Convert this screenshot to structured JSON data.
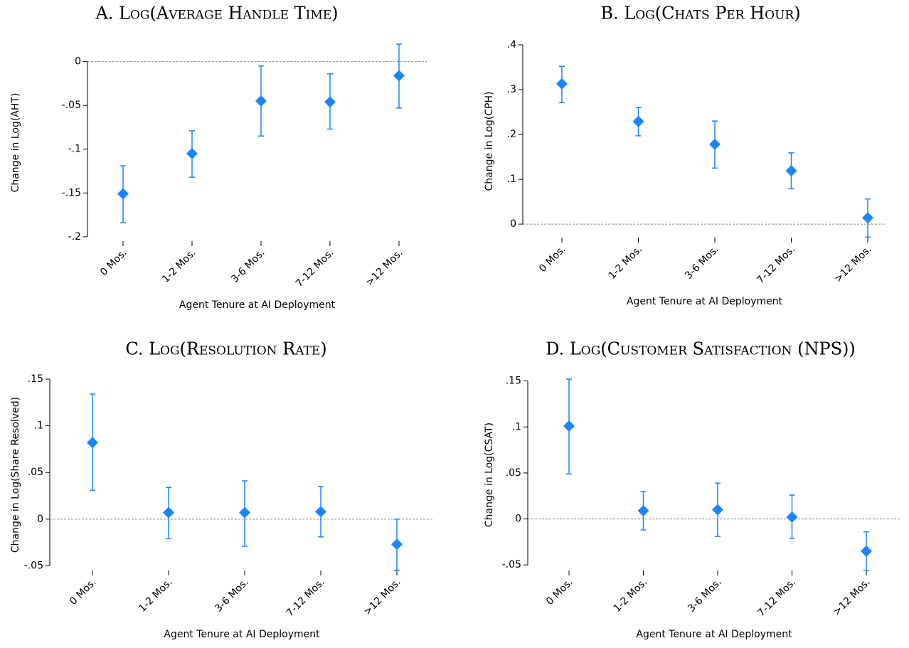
{
  "chart_data": [
    {
      "type": "errorbar",
      "title": "A. Log(Average Handle Time)",
      "x_label": "Agent Tenure at AI Deployment",
      "y_label": "Change in Log(AHT)",
      "categories": [
        "0 Mos.",
        "1-2 Mos.",
        "3-6 Mos.",
        "7-12 Mos.",
        ">12 Mos."
      ],
      "values": [
        -0.151,
        -0.105,
        -0.045,
        -0.046,
        -0.016
      ],
      "ci_low": [
        -0.184,
        -0.132,
        -0.085,
        -0.077,
        -0.053
      ],
      "ci_high": [
        -0.119,
        -0.079,
        -0.005,
        -0.014,
        0.02
      ],
      "color": "#1a85ff",
      "reference_line": 0,
      "ylim": [
        -0.205,
        0.02
      ],
      "yticks": [
        {
          "value": -0.2,
          "label": "-.2"
        },
        {
          "value": -0.15,
          "label": "-.15"
        },
        {
          "value": -0.1,
          "label": "-.1"
        },
        {
          "value": -0.05,
          "label": "-.05"
        },
        0
      ]
    },
    {
      "type": "errorbar",
      "title": "B. Log(Chats Per Hour)",
      "x_label": "Agent Tenure at AI Deployment",
      "y_label": "Change in Log(CPH)",
      "categories": [
        "0 Mos.",
        "1-2 Mos.",
        "3-6 Mos.",
        "7-12 Mos.",
        ">12 Mos."
      ],
      "values": [
        0.313,
        0.229,
        0.178,
        0.119,
        0.014
      ],
      "ci_low": [
        0.271,
        0.197,
        0.125,
        0.079,
        -0.029
      ],
      "ci_high": [
        0.352,
        0.26,
        0.23,
        0.159,
        0.056
      ],
      "color": "#1a85ff",
      "reference_line": 0,
      "ylim": [
        -0.03,
        0.4
      ],
      "yticks": [
        0,
        {
          "value": 0.1,
          "label": ".1"
        },
        {
          "value": 0.2,
          "label": ".2"
        },
        {
          "value": 0.3,
          "label": ".3"
        },
        {
          "value": 0.4,
          "label": ".4"
        }
      ]
    },
    {
      "type": "errorbar",
      "title": "C. Log(Resolution Rate)",
      "x_label": "Agent Tenure at AI Deployment",
      "y_label": "Change in Log(Share Resolved)",
      "categories": [
        "0 Mos.",
        "1-2 Mos.",
        "3-6 Mos.",
        "7-12 Mos.",
        ">12 Mos."
      ],
      "values": [
        0.082,
        0.007,
        0.007,
        0.008,
        -0.027
      ],
      "ci_low": [
        0.031,
        -0.021,
        -0.029,
        -0.019,
        -0.055
      ],
      "ci_high": [
        0.134,
        0.034,
        0.041,
        0.035,
        0.0
      ],
      "color": "#1a85ff",
      "reference_line": 0,
      "ylim": [
        -0.055,
        0.15
      ],
      "yticks": [
        {
          "value": -0.05,
          "label": "-.05"
        },
        0,
        {
          "value": 0.05,
          "label": ".05"
        },
        {
          "value": 0.1,
          "label": ".1"
        },
        {
          "value": 0.15,
          "label": ".15"
        }
      ]
    },
    {
      "type": "errorbar",
      "title": "D. Log(Customer Satisfaction (NPS))",
      "x_label": "Agent Tenure at AI Deployment",
      "y_label": "Change in Log(CSAT)",
      "categories": [
        "0 Mos.",
        "1-2 Mos.",
        "3-6 Mos.",
        "7-12 Mos.",
        ">12 Mos."
      ],
      "values": [
        0.101,
        0.009,
        0.01,
        0.002,
        -0.035
      ],
      "ci_low": [
        0.049,
        -0.012,
        -0.019,
        -0.021,
        -0.056
      ],
      "ci_high": [
        0.152,
        0.03,
        0.039,
        0.026,
        -0.014
      ],
      "color": "#1a85ff",
      "reference_line": 0,
      "ylim": [
        -0.056,
        0.152
      ],
      "yticks": [
        {
          "value": -0.05,
          "label": "-.05"
        },
        0,
        {
          "value": 0.05,
          "label": ".05"
        },
        {
          "value": 0.1,
          "label": ".1"
        },
        {
          "value": 0.15,
          "label": ".15"
        }
      ]
    }
  ]
}
